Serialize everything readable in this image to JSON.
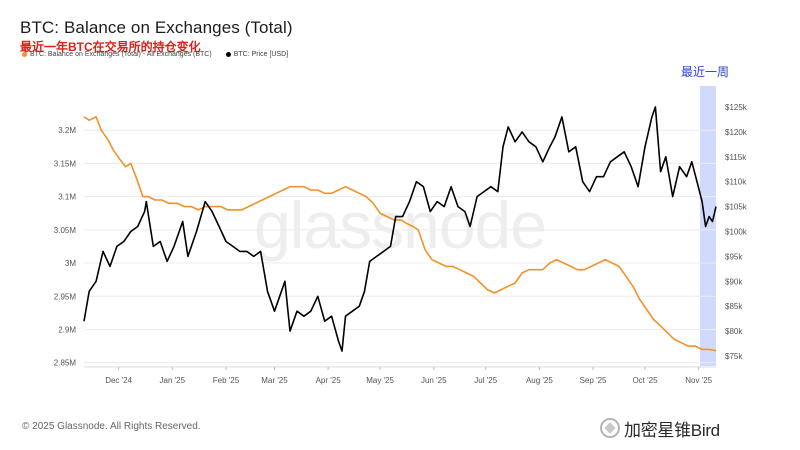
{
  "header": {
    "title": "BTC: Balance on Exchanges (Total)",
    "subtitle": "最近一年BTC在交易所的持仓变化"
  },
  "legend": {
    "balance_label": "BTC: Balance on Exchanges (Total) - All Exchanges (BTC)",
    "price_label": "BTC: Price [USD]"
  },
  "footer": {
    "copyright": "© 2025 Glassnode. All Rights Reserved."
  },
  "watermark": {
    "text": "glassnode",
    "bottom_text": "加密星锥Bird"
  },
  "colors": {
    "balance": "#f0922b",
    "price": "#000000",
    "highlight": "#c9d3fb",
    "highlight_label": "#2a46d6"
  },
  "chart_data": {
    "type": "line",
    "title": "BTC: Balance on Exchanges (Total)",
    "highlight": {
      "label": "最近一周",
      "x_start": "2025-11-04",
      "x_end": "2025-11-11"
    },
    "x_ticks": [
      "Dec '24",
      "Jan '25",
      "Feb '25",
      "Mar '25",
      "Apr '25",
      "May '25",
      "Jun '25",
      "Jul '25",
      "Aug '25",
      "Sep '25",
      "Oct '25",
      "Nov '25"
    ],
    "x_range": [
      "2024-11-11",
      "2025-11-11"
    ],
    "y_left": {
      "ticks": [
        "3.2M",
        "3.15M",
        "3.1M",
        "3.05M",
        "3M",
        "2.95M",
        "2.9M",
        "2.85M"
      ],
      "ylim": [
        2.845,
        3.25
      ],
      "unit": "M BTC"
    },
    "y_right": {
      "ticks": [
        "$125k",
        "$120k",
        "$115k",
        "$110k",
        "$105k",
        "$100k",
        "$95k",
        "$90k",
        "$85k",
        "$80k",
        "$75k"
      ],
      "ylim": [
        73,
        127
      ],
      "unit": "k USD"
    },
    "grid": "horizontal",
    "legend_position": "top-left",
    "series": [
      {
        "name": "BTC: Balance on Exchanges (Total) - All Exchanges (BTC)",
        "axis": "left",
        "points": [
          [
            "2024-11-11",
            3.22
          ],
          [
            "2024-11-14",
            3.215
          ],
          [
            "2024-11-18",
            3.22
          ],
          [
            "2024-11-21",
            3.2
          ],
          [
            "2024-11-25",
            3.185
          ],
          [
            "2024-11-28",
            3.17
          ],
          [
            "2024-12-02",
            3.155
          ],
          [
            "2024-12-05",
            3.145
          ],
          [
            "2024-12-08",
            3.15
          ],
          [
            "2024-12-11",
            3.13
          ],
          [
            "2024-12-15",
            3.1
          ],
          [
            "2024-12-18",
            3.1
          ],
          [
            "2024-12-22",
            3.095
          ],
          [
            "2024-12-26",
            3.095
          ],
          [
            "2024-12-30",
            3.09
          ],
          [
            "2025-01-04",
            3.09
          ],
          [
            "2025-01-08",
            3.085
          ],
          [
            "2025-01-12",
            3.085
          ],
          [
            "2025-01-16",
            3.08
          ],
          [
            "2025-01-20",
            3.085
          ],
          [
            "2025-01-25",
            3.085
          ],
          [
            "2025-01-29",
            3.085
          ],
          [
            "2025-02-02",
            3.08
          ],
          [
            "2025-02-06",
            3.08
          ],
          [
            "2025-02-10",
            3.08
          ],
          [
            "2025-02-14",
            3.085
          ],
          [
            "2025-02-18",
            3.09
          ],
          [
            "2025-02-22",
            3.095
          ],
          [
            "2025-02-26",
            3.1
          ],
          [
            "2025-03-02",
            3.105
          ],
          [
            "2025-03-06",
            3.11
          ],
          [
            "2025-03-10",
            3.115
          ],
          [
            "2025-03-14",
            3.115
          ],
          [
            "2025-03-18",
            3.115
          ],
          [
            "2025-03-22",
            3.11
          ],
          [
            "2025-03-26",
            3.11
          ],
          [
            "2025-03-30",
            3.105
          ],
          [
            "2025-04-03",
            3.105
          ],
          [
            "2025-04-07",
            3.11
          ],
          [
            "2025-04-11",
            3.115
          ],
          [
            "2025-04-15",
            3.11
          ],
          [
            "2025-04-19",
            3.105
          ],
          [
            "2025-04-23",
            3.1
          ],
          [
            "2025-04-27",
            3.09
          ],
          [
            "2025-05-01",
            3.075
          ],
          [
            "2025-05-05",
            3.07
          ],
          [
            "2025-05-09",
            3.065
          ],
          [
            "2025-05-13",
            3.065
          ],
          [
            "2025-05-16",
            3.06
          ],
          [
            "2025-05-20",
            3.055
          ],
          [
            "2025-05-23",
            3.05
          ],
          [
            "2025-05-27",
            3.02
          ],
          [
            "2025-05-31",
            3.005
          ],
          [
            "2025-06-04",
            3.0
          ],
          [
            "2025-06-08",
            2.995
          ],
          [
            "2025-06-12",
            2.995
          ],
          [
            "2025-06-16",
            2.99
          ],
          [
            "2025-06-20",
            2.985
          ],
          [
            "2025-06-24",
            2.98
          ],
          [
            "2025-06-28",
            2.97
          ],
          [
            "2025-07-02",
            2.96
          ],
          [
            "2025-07-06",
            2.955
          ],
          [
            "2025-07-10",
            2.96
          ],
          [
            "2025-07-14",
            2.965
          ],
          [
            "2025-07-18",
            2.97
          ],
          [
            "2025-07-22",
            2.985
          ],
          [
            "2025-07-26",
            2.99
          ],
          [
            "2025-07-30",
            2.99
          ],
          [
            "2025-08-03",
            2.99
          ],
          [
            "2025-08-07",
            3.0
          ],
          [
            "2025-08-11",
            3.005
          ],
          [
            "2025-08-15",
            3.0
          ],
          [
            "2025-08-19",
            2.995
          ],
          [
            "2025-08-23",
            2.99
          ],
          [
            "2025-08-27",
            2.99
          ],
          [
            "2025-08-31",
            2.995
          ],
          [
            "2025-09-04",
            3.0
          ],
          [
            "2025-09-08",
            3.005
          ],
          [
            "2025-09-12",
            3.0
          ],
          [
            "2025-09-16",
            2.995
          ],
          [
            "2025-09-20",
            2.98
          ],
          [
            "2025-09-24",
            2.965
          ],
          [
            "2025-09-28",
            2.945
          ],
          [
            "2025-10-02",
            2.93
          ],
          [
            "2025-10-06",
            2.915
          ],
          [
            "2025-10-10",
            2.905
          ],
          [
            "2025-10-14",
            2.895
          ],
          [
            "2025-10-18",
            2.885
          ],
          [
            "2025-10-22",
            2.88
          ],
          [
            "2025-10-26",
            2.875
          ],
          [
            "2025-10-30",
            2.875
          ],
          [
            "2025-11-03",
            2.87
          ],
          [
            "2025-11-07",
            2.87
          ],
          [
            "2025-11-11",
            2.868
          ]
        ]
      },
      {
        "name": "BTC: Price [USD]",
        "axis": "right",
        "points": [
          [
            "2024-11-11",
            82
          ],
          [
            "2024-11-14",
            88
          ],
          [
            "2024-11-18",
            90
          ],
          [
            "2024-11-22",
            96
          ],
          [
            "2024-11-26",
            93
          ],
          [
            "2024-11-30",
            97
          ],
          [
            "2024-12-04",
            98
          ],
          [
            "2024-12-08",
            100
          ],
          [
            "2024-12-12",
            101
          ],
          [
            "2024-12-16",
            104
          ],
          [
            "2024-12-17",
            106
          ],
          [
            "2024-12-21",
            97
          ],
          [
            "2024-12-25",
            98
          ],
          [
            "2024-12-29",
            94
          ],
          [
            "2025-01-02",
            97
          ],
          [
            "2025-01-07",
            102
          ],
          [
            "2025-01-10",
            95
          ],
          [
            "2025-01-15",
            100
          ],
          [
            "2025-01-20",
            106
          ],
          [
            "2025-01-24",
            104
          ],
          [
            "2025-01-28",
            101
          ],
          [
            "2025-02-01",
            98
          ],
          [
            "2025-02-05",
            97
          ],
          [
            "2025-02-09",
            96
          ],
          [
            "2025-02-13",
            96
          ],
          [
            "2025-02-17",
            95
          ],
          [
            "2025-02-21",
            96
          ],
          [
            "2025-02-25",
            88
          ],
          [
            "2025-03-01",
            84
          ],
          [
            "2025-03-04",
            87
          ],
          [
            "2025-03-07",
            90
          ],
          [
            "2025-03-10",
            80
          ],
          [
            "2025-03-14",
            84
          ],
          [
            "2025-03-18",
            83
          ],
          [
            "2025-03-22",
            84
          ],
          [
            "2025-03-26",
            87
          ],
          [
            "2025-03-30",
            82
          ],
          [
            "2025-04-03",
            83
          ],
          [
            "2025-04-07",
            78
          ],
          [
            "2025-04-09",
            76
          ],
          [
            "2025-04-11",
            83
          ],
          [
            "2025-04-15",
            84
          ],
          [
            "2025-04-19",
            85
          ],
          [
            "2025-04-22",
            88
          ],
          [
            "2025-04-25",
            94
          ],
          [
            "2025-04-29",
            95
          ],
          [
            "2025-05-03",
            96
          ],
          [
            "2025-05-07",
            97
          ],
          [
            "2025-05-10",
            103
          ],
          [
            "2025-05-14",
            103
          ],
          [
            "2025-05-18",
            106
          ],
          [
            "2025-05-22",
            110
          ],
          [
            "2025-05-26",
            109
          ],
          [
            "2025-05-30",
            104
          ],
          [
            "2025-06-03",
            106
          ],
          [
            "2025-06-07",
            105
          ],
          [
            "2025-06-11",
            109
          ],
          [
            "2025-06-15",
            105
          ],
          [
            "2025-06-19",
            104
          ],
          [
            "2025-06-22",
            101
          ],
          [
            "2025-06-26",
            107
          ],
          [
            "2025-06-30",
            108
          ],
          [
            "2025-07-04",
            109
          ],
          [
            "2025-07-08",
            108
          ],
          [
            "2025-07-11",
            117
          ],
          [
            "2025-07-14",
            121
          ],
          [
            "2025-07-18",
            118
          ],
          [
            "2025-07-22",
            120
          ],
          [
            "2025-07-26",
            118
          ],
          [
            "2025-07-30",
            117
          ],
          [
            "2025-08-03",
            114
          ],
          [
            "2025-08-07",
            117
          ],
          [
            "2025-08-10",
            119
          ],
          [
            "2025-08-14",
            123
          ],
          [
            "2025-08-18",
            116
          ],
          [
            "2025-08-22",
            117
          ],
          [
            "2025-08-26",
            110
          ],
          [
            "2025-08-30",
            108
          ],
          [
            "2025-09-03",
            111
          ],
          [
            "2025-09-07",
            111
          ],
          [
            "2025-09-11",
            114
          ],
          [
            "2025-09-15",
            115
          ],
          [
            "2025-09-19",
            116
          ],
          [
            "2025-09-23",
            113
          ],
          [
            "2025-09-27",
            109
          ],
          [
            "2025-10-01",
            117
          ],
          [
            "2025-10-05",
            123
          ],
          [
            "2025-10-07",
            125
          ],
          [
            "2025-10-10",
            112
          ],
          [
            "2025-10-13",
            115
          ],
          [
            "2025-10-17",
            107
          ],
          [
            "2025-10-21",
            113
          ],
          [
            "2025-10-25",
            111
          ],
          [
            "2025-10-28",
            114
          ],
          [
            "2025-10-31",
            110
          ],
          [
            "2025-11-03",
            106
          ],
          [
            "2025-11-05",
            101
          ],
          [
            "2025-11-07",
            103
          ],
          [
            "2025-11-09",
            102
          ],
          [
            "2025-11-11",
            105
          ]
        ]
      }
    ]
  }
}
